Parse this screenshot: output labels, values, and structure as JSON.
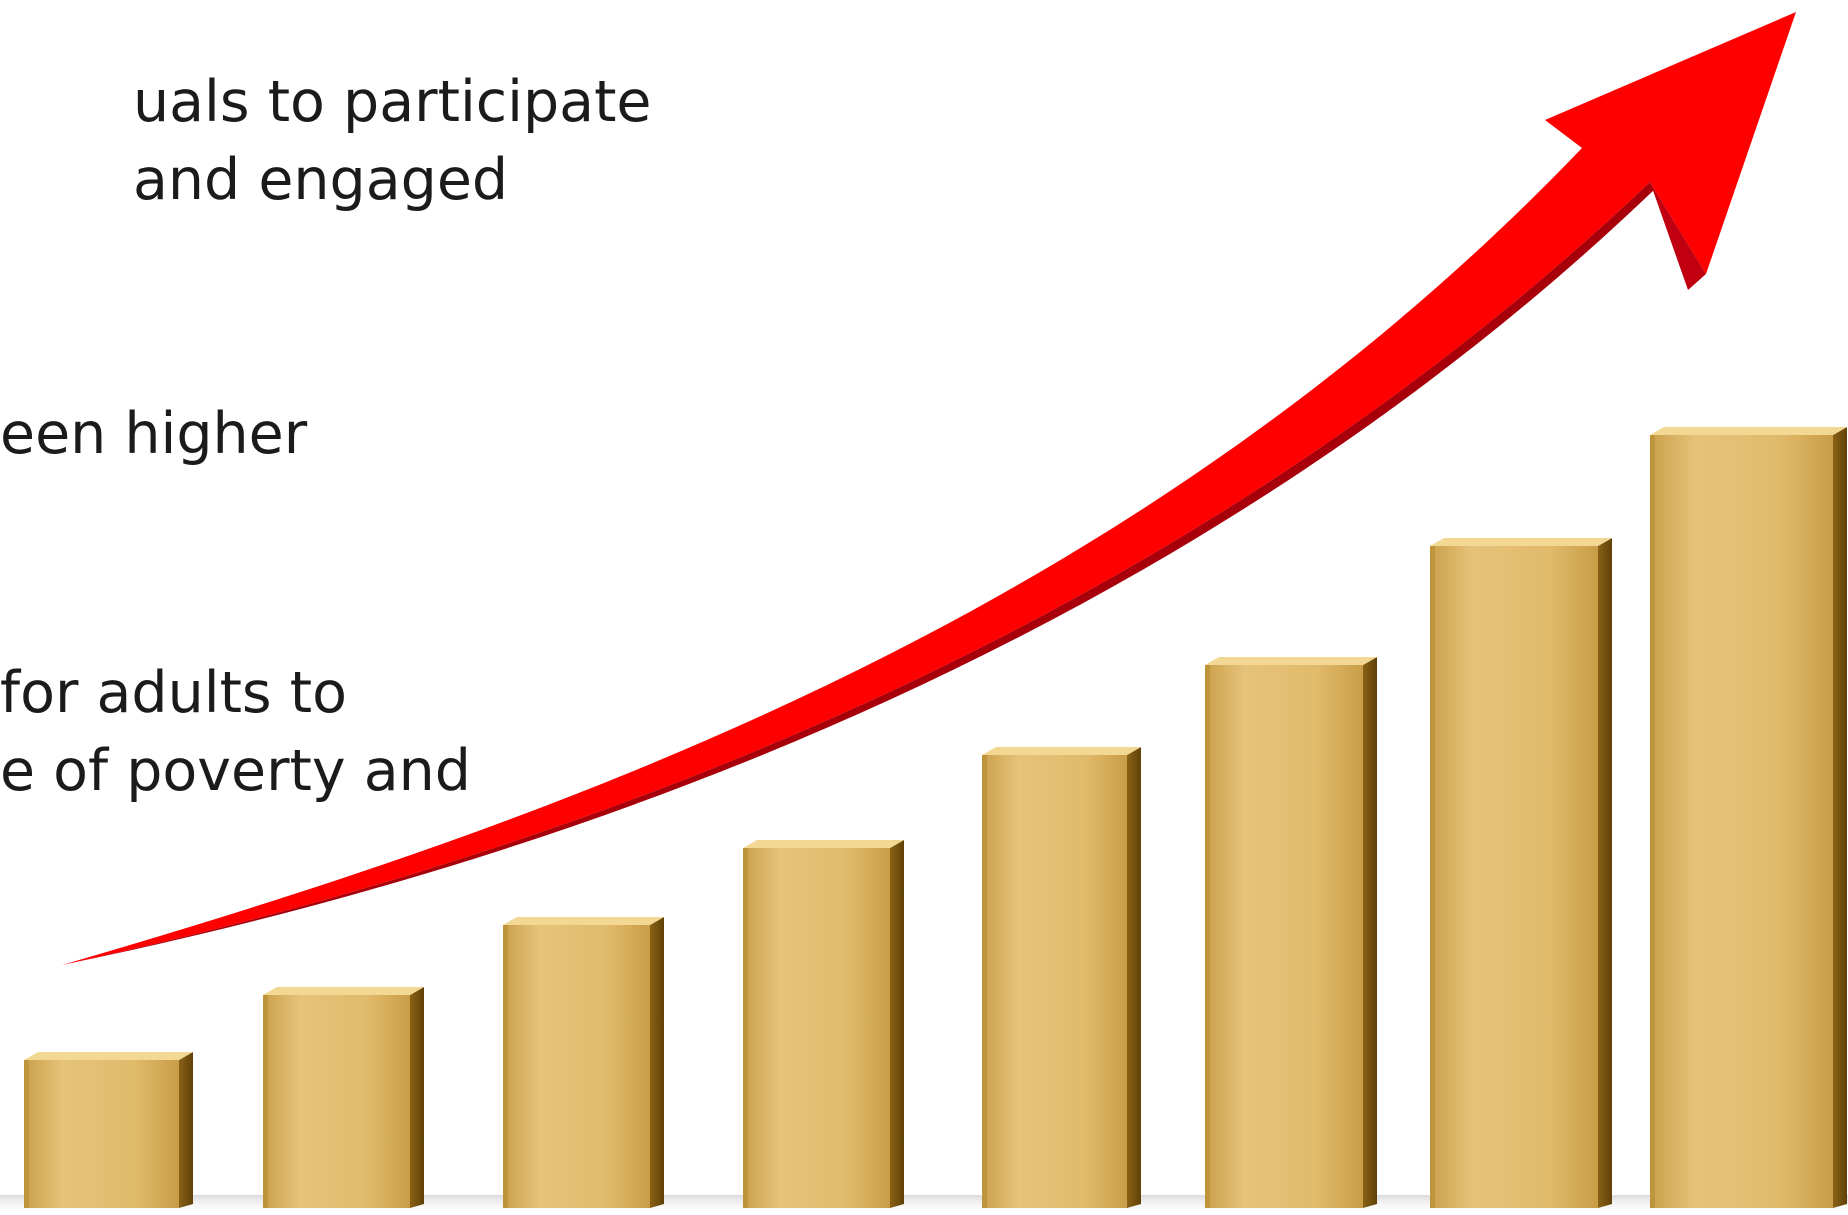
{
  "slide": {
    "text_lines": [
      "uals to participate",
      " and engaged",
      "een higher",
      "for adults to",
      "e of poverty and"
    ]
  },
  "illustration": {
    "bar_count": 8,
    "bar_color": "#e2bd6e",
    "bar_side_color": "#a57a1c",
    "bar_top_color": "#f3d894",
    "arrow_color": "#ff0000",
    "arrow_dark_color": "#b20008"
  }
}
